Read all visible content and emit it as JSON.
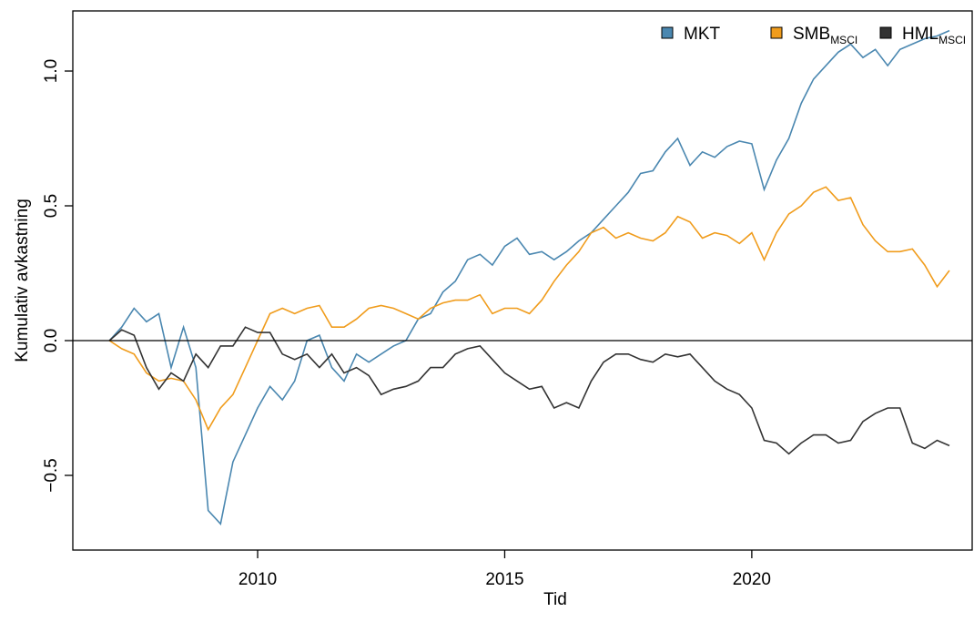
{
  "chart_data": {
    "type": "line",
    "x_label": "Tid",
    "y_label": "Kumulativ avkastning",
    "x": [
      2007,
      2007.25,
      2007.5,
      2007.75,
      2008,
      2008.25,
      2008.5,
      2008.75,
      2009,
      2009.25,
      2009.5,
      2009.75,
      2010,
      2010.25,
      2010.5,
      2010.75,
      2011,
      2011.25,
      2011.5,
      2011.75,
      2012,
      2012.25,
      2012.5,
      2012.75,
      2013,
      2013.25,
      2013.5,
      2013.75,
      2014,
      2014.25,
      2014.5,
      2014.75,
      2015,
      2015.25,
      2015.5,
      2015.75,
      2016,
      2016.25,
      2016.5,
      2016.75,
      2017,
      2017.25,
      2017.5,
      2017.75,
      2018,
      2018.25,
      2018.5,
      2018.75,
      2019,
      2019.25,
      2019.5,
      2019.75,
      2020,
      2020.25,
      2020.5,
      2020.75,
      2021,
      2021.25,
      2021.5,
      2021.75,
      2022,
      2022.25,
      2022.5,
      2022.75,
      2023,
      2023.25,
      2023.5,
      2023.75,
      2024
    ],
    "series": [
      {
        "name": "MKT",
        "color": "#4a87b0",
        "values": [
          0.0,
          0.05,
          0.12,
          0.07,
          0.1,
          -0.1,
          0.05,
          -0.1,
          -0.63,
          -0.68,
          -0.45,
          -0.35,
          -0.25,
          -0.17,
          -0.22,
          -0.15,
          0.0,
          0.02,
          -0.1,
          -0.15,
          -0.05,
          -0.08,
          -0.05,
          -0.02,
          0.0,
          0.08,
          0.1,
          0.18,
          0.22,
          0.3,
          0.32,
          0.28,
          0.35,
          0.38,
          0.32,
          0.33,
          0.3,
          0.33,
          0.37,
          0.4,
          0.45,
          0.5,
          0.55,
          0.62,
          0.63,
          0.7,
          0.75,
          0.65,
          0.7,
          0.68,
          0.72,
          0.74,
          0.73,
          0.56,
          0.67,
          0.75,
          0.88,
          0.97,
          1.02,
          1.07,
          1.1,
          1.05,
          1.08,
          1.02,
          1.08,
          1.1,
          1.12,
          1.13,
          1.15
        ]
      },
      {
        "name": "SMB",
        "name_sub": "MSCI",
        "color": "#f09c1c",
        "values": [
          0.0,
          -0.03,
          -0.05,
          -0.12,
          -0.15,
          -0.14,
          -0.15,
          -0.22,
          -0.33,
          -0.25,
          -0.2,
          -0.1,
          0.0,
          0.1,
          0.12,
          0.1,
          0.12,
          0.13,
          0.05,
          0.05,
          0.08,
          0.12,
          0.13,
          0.12,
          0.1,
          0.08,
          0.12,
          0.14,
          0.15,
          0.15,
          0.17,
          0.1,
          0.12,
          0.12,
          0.1,
          0.15,
          0.22,
          0.28,
          0.33,
          0.4,
          0.42,
          0.38,
          0.4,
          0.38,
          0.37,
          0.4,
          0.46,
          0.44,
          0.38,
          0.4,
          0.39,
          0.36,
          0.4,
          0.3,
          0.4,
          0.47,
          0.5,
          0.55,
          0.57,
          0.52,
          0.53,
          0.43,
          0.37,
          0.33,
          0.33,
          0.34,
          0.28,
          0.2,
          0.26
        ]
      },
      {
        "name": "HML",
        "name_sub": "MSCI",
        "color": "#333333",
        "values": [
          0.0,
          0.04,
          0.02,
          -0.1,
          -0.18,
          -0.12,
          -0.15,
          -0.05,
          -0.1,
          -0.02,
          -0.02,
          0.05,
          0.03,
          0.03,
          -0.05,
          -0.07,
          -0.05,
          -0.1,
          -0.05,
          -0.12,
          -0.1,
          -0.13,
          -0.2,
          -0.18,
          -0.17,
          -0.15,
          -0.1,
          -0.1,
          -0.05,
          -0.03,
          -0.02,
          -0.07,
          -0.12,
          -0.15,
          -0.18,
          -0.17,
          -0.25,
          -0.23,
          -0.25,
          -0.15,
          -0.08,
          -0.05,
          -0.05,
          -0.07,
          -0.08,
          -0.05,
          -0.06,
          -0.05,
          -0.1,
          -0.15,
          -0.18,
          -0.2,
          -0.25,
          -0.37,
          -0.38,
          -0.42,
          -0.38,
          -0.35,
          -0.35,
          -0.38,
          -0.37,
          -0.3,
          -0.27,
          -0.25,
          -0.25,
          -0.38,
          -0.4,
          -0.37,
          -0.39
        ]
      }
    ],
    "xlim": [
      2006.26,
      2024.46
    ],
    "xticks": [
      2010,
      2015,
      2020
    ],
    "ylim": [
      -0.777,
      1.223
    ],
    "yticks": [
      {
        "value": -0.5,
        "label": "−0.5"
      },
      {
        "value": 0,
        "label": "0.0"
      },
      0.5,
      {
        "value": 1,
        "label": "1.0"
      }
    ],
    "reference_line": 0,
    "legend": "topright"
  }
}
